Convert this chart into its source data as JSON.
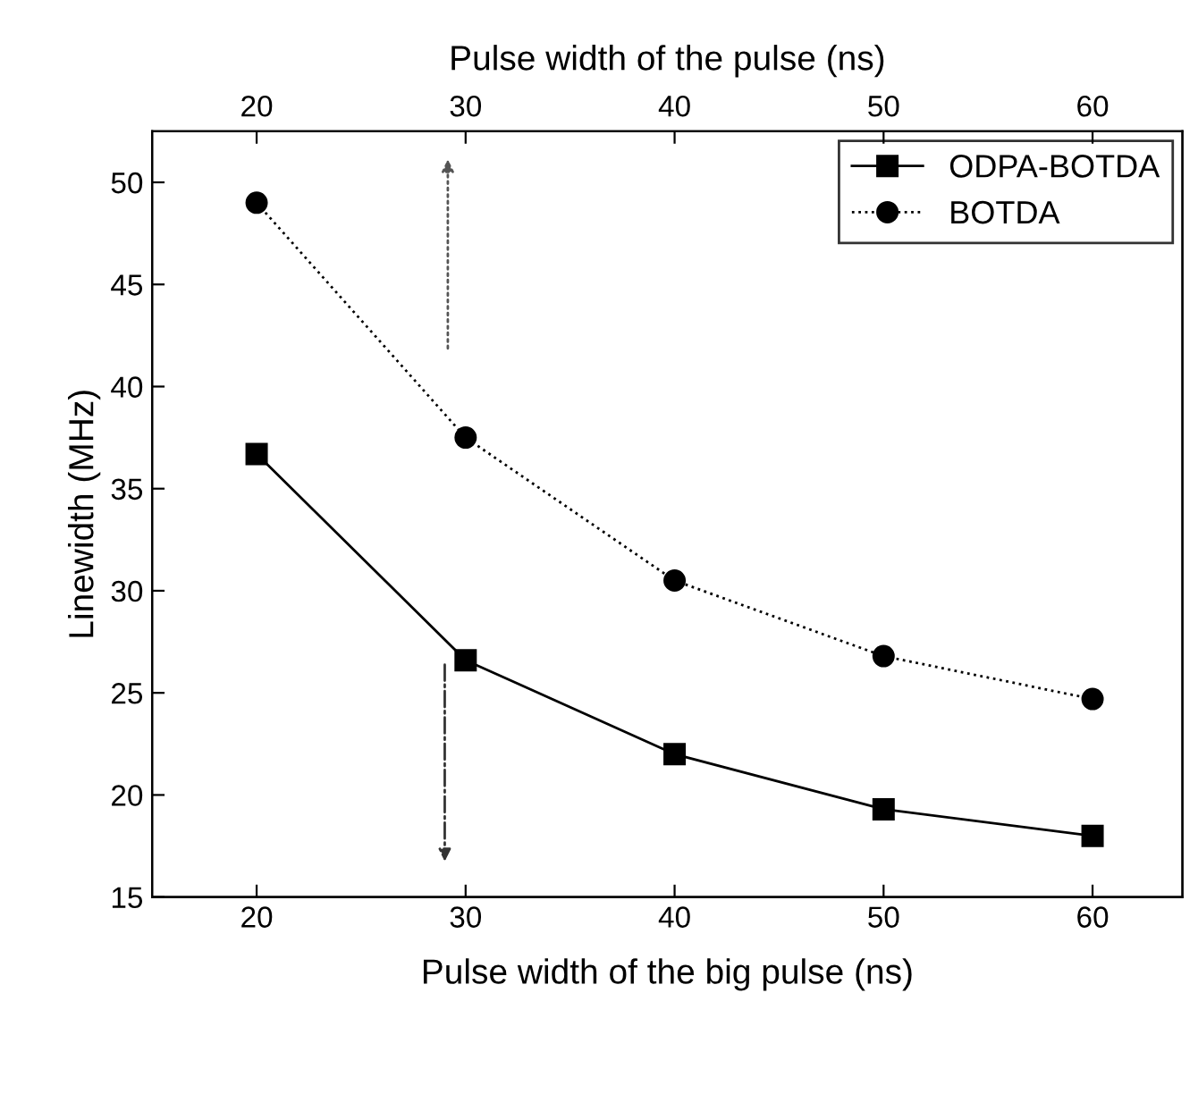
{
  "chart_data": {
    "type": "line",
    "xlabel": "Pulse width of the big pulse (ns)",
    "x2label": "Pulse width of the pulse (ns)",
    "ylabel": "Linewidth (MHz)",
    "x": [
      20,
      30,
      40,
      50,
      60
    ],
    "series": [
      {
        "name": "ODPA-BOTDA",
        "color": "#000000",
        "values": [
          36.7,
          26.6,
          22.0,
          19.3,
          18.0
        ],
        "marker": "square",
        "line_style": "solid"
      },
      {
        "name": "BOTDA",
        "color": "#000000",
        "values": [
          49.0,
          37.5,
          30.5,
          26.8,
          24.7
        ],
        "marker": "circle",
        "line_style": "dotted"
      }
    ],
    "xlim": [
      15,
      64.3
    ],
    "xticks": [
      20,
      30,
      40,
      50,
      60
    ],
    "x2lim": [
      15,
      64.3
    ],
    "x2ticks": [
      20,
      30,
      40,
      50,
      60
    ],
    "ylim": [
      15,
      52.5
    ],
    "yticks": [
      15,
      20,
      25,
      30,
      35,
      40,
      45,
      50
    ],
    "grid": false,
    "legend": "top right"
  }
}
